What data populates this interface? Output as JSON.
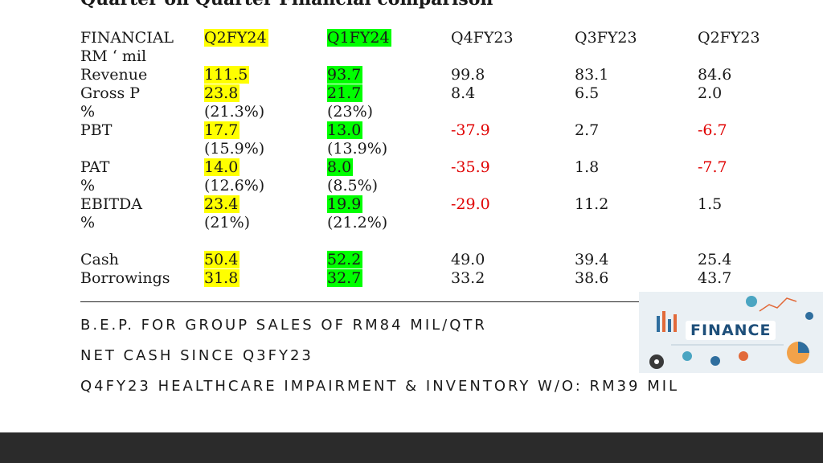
{
  "title": "Quarter on Quarter Financial comparison",
  "table": {
    "header": {
      "label_line1": "FINANCIAL",
      "label_line2": "RM ‘ mil",
      "q2fy24": "Q2FY24",
      "q1fy24": "Q1FY24",
      "q4fy23": "Q4FY23",
      "q3fy23": "Q3FY23",
      "q2fy23": "Q2FY23"
    },
    "revenue": {
      "label": "Revenue",
      "q2fy24": "111.5",
      "q1fy24": "93.7",
      "q4fy23": "99.8",
      "q3fy23": "83.1",
      "q2fy23": "84.6"
    },
    "gross_profit": {
      "label": "Gross P",
      "q2fy24": "23.8",
      "q1fy24": "21.7",
      "q4fy23": "8.4",
      "q3fy23": "6.5",
      "q2fy23": "2.0"
    },
    "gross_margin": {
      "label": "%",
      "q2fy24": "(21.3%)",
      "q1fy24": "(23%)"
    },
    "pbt": {
      "label": "PBT",
      "q2fy24": "17.7",
      "q1fy24": "13.0",
      "q4fy23": "-37.9",
      "q3fy23": "2.7",
      "q2fy23": "-6.7"
    },
    "pbt_margin": {
      "q2fy24": "(15.9%)",
      "q1fy24": "(13.9%)"
    },
    "pat": {
      "label": "PAT",
      "q2fy24": "14.0",
      "q1fy24": "8.0",
      "q4fy23": "-35.9",
      "q3fy23": "1.8",
      "q2fy23": "-7.7"
    },
    "pat_margin": {
      "label": "%",
      "q2fy24": "(12.6%)",
      "q1fy24": "(8.5%)"
    },
    "ebitda": {
      "label": "EBITDA",
      "q2fy24": "23.4",
      "q1fy24": "19.9",
      "q4fy23": "-29.0",
      "q3fy23": "11.2",
      "q2fy23": "1.5"
    },
    "ebitda_margin": {
      "label": "%",
      "q2fy24": "(21%)",
      "q1fy24": "(21.2%)"
    },
    "cash": {
      "label": "Cash",
      "q2fy24": "50.4",
      "q1fy24": "52.2",
      "q4fy23": "49.0",
      "q3fy23": "39.4",
      "q2fy23": "25.4"
    },
    "borrowings": {
      "label": "Borrowings",
      "q2fy24": "31.8",
      "q1fy24": "32.7",
      "q4fy23": "33.2",
      "q3fy23": "38.6",
      "q2fy23": "43.7"
    }
  },
  "bullets": {
    "b1": "B.E.P. FOR GROUP SALES OF RM84 MIL/QTR",
    "b2": "NET CASH SINCE Q3FY23",
    "b3": "Q4FY23 HEALTHCARE IMPAIRMENT & INVENTORY W/O: RM39 MIL"
  },
  "image": {
    "label": "FINANCE",
    "icon": "finance-illustration"
  },
  "colors": {
    "highlight_q2fy24": "#ffff00",
    "highlight_q1fy24": "#00ff00",
    "negative": "#e00000"
  }
}
